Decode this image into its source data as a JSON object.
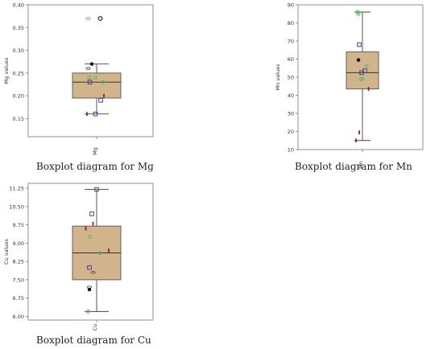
{
  "colors": {
    "frame": "#777777",
    "box_fill": "#d2b48c",
    "box_stroke": "#555555",
    "median": "#333333",
    "whisker": "#444444",
    "marker_black": "#000000",
    "marker_green": "#56c256",
    "marker_blue": "#4a3d9c",
    "marker_red": "#9c1f1f",
    "marker_gray": "#555555"
  },
  "chart_data": [
    {
      "type": "boxplot",
      "ylabel": "Mg values",
      "category": "Mg",
      "caption": "Boxplot diagram for Mg",
      "ylim": [
        0.11,
        0.4
      ],
      "ticks": [
        "0.40",
        "0.35",
        "0.30",
        "0.25",
        "0.20",
        "0.15"
      ],
      "tick_values": [
        0.4,
        0.35,
        0.3,
        0.25,
        0.2,
        0.15
      ],
      "box": {
        "min": 0.16,
        "q1": 0.195,
        "median": 0.23,
        "q3": 0.25,
        "max": 0.27
      },
      "points": [
        {
          "x": -0.35,
          "y": 0.37,
          "shape": "ellipse",
          "color": "marker_green"
        },
        {
          "x": 0.15,
          "y": 0.37,
          "shape": "circle-open",
          "color": "marker_black"
        },
        {
          "x": -0.2,
          "y": 0.27,
          "shape": "dot",
          "color": "marker_black"
        },
        {
          "x": -0.35,
          "y": 0.26,
          "shape": "ellipse",
          "color": "marker_gray"
        },
        {
          "x": -0.3,
          "y": 0.24,
          "shape": "ring",
          "color": "marker_green"
        },
        {
          "x": -0.05,
          "y": 0.24,
          "shape": "ring",
          "color": "marker_green"
        },
        {
          "x": -0.28,
          "y": 0.23,
          "shape": "square",
          "color": "marker_blue"
        },
        {
          "x": 0.25,
          "y": 0.23,
          "shape": "ring",
          "color": "marker_green"
        },
        {
          "x": 0.3,
          "y": 0.2,
          "shape": "bar",
          "color": "marker_red"
        },
        {
          "x": 0.17,
          "y": 0.19,
          "shape": "square",
          "color": "marker_blue"
        },
        {
          "x": -0.4,
          "y": 0.16,
          "shape": "bar",
          "color": "marker_red"
        },
        {
          "x": -0.05,
          "y": 0.16,
          "shape": "square",
          "color": "marker_blue"
        }
      ]
    },
    {
      "type": "boxplot",
      "ylabel": "Mn values",
      "category": "Mn",
      "caption": "Boxplot diagram for Mn",
      "ylim": [
        10,
        90
      ],
      "ticks": [
        "90",
        "80",
        "70",
        "60",
        "50",
        "40",
        "30",
        "20",
        "10"
      ],
      "tick_values": [
        90,
        80,
        70,
        60,
        50,
        40,
        30,
        20,
        10
      ],
      "box": {
        "min": 15,
        "q1": 43.5,
        "median": 52.5,
        "q3": 64,
        "max": 86
      },
      "points": [
        {
          "x": -0.3,
          "y": 86,
          "shape": "ring",
          "color": "marker_green"
        },
        {
          "x": -0.25,
          "y": 85,
          "shape": "ring",
          "color": "marker_green"
        },
        {
          "x": -0.2,
          "y": 68,
          "shape": "square",
          "color": "marker_blue"
        },
        {
          "x": -0.25,
          "y": 59.5,
          "shape": "dot",
          "color": "marker_black"
        },
        {
          "x": 0.25,
          "y": 56,
          "shape": "ring",
          "color": "marker_green"
        },
        {
          "x": 0.15,
          "y": 53.5,
          "shape": "square",
          "color": "marker_blue"
        },
        {
          "x": -0.05,
          "y": 52.5,
          "shape": "square",
          "color": "marker_blue"
        },
        {
          "x": -0.1,
          "y": 49,
          "shape": "ring",
          "color": "marker_green"
        },
        {
          "x": 0.0,
          "y": 49,
          "shape": "ring",
          "color": "marker_green"
        },
        {
          "x": 0.38,
          "y": 43.5,
          "shape": "bar",
          "color": "marker_red"
        },
        {
          "x": -0.2,
          "y": 19.5,
          "shape": "bar",
          "color": "marker_red"
        },
        {
          "x": -0.4,
          "y": 15,
          "shape": "bar",
          "color": "marker_red"
        }
      ]
    },
    {
      "type": "boxplot",
      "ylabel": "Cu values",
      "category": "Cu",
      "caption": "Boxplot diagram for Cu",
      "ylim": [
        5.85,
        11.45
      ],
      "ticks": [
        "11.25",
        "10.50",
        "9.75",
        "9.00",
        "8.25",
        "7.50",
        "6.75",
        "6.00"
      ],
      "tick_values": [
        11.25,
        10.5,
        9.75,
        9.0,
        8.25,
        7.5,
        6.75,
        6.0
      ],
      "box": {
        "min": 6.2,
        "q1": 7.5,
        "median": 8.6,
        "q3": 9.7,
        "max": 11.2
      },
      "points": [
        {
          "x": 0.0,
          "y": 11.2,
          "shape": "square",
          "color": "marker_blue"
        },
        {
          "x": -0.2,
          "y": 10.2,
          "shape": "square",
          "color": "marker_blue"
        },
        {
          "x": -0.15,
          "y": 9.8,
          "shape": "bar",
          "color": "marker_red"
        },
        {
          "x": -0.45,
          "y": 9.6,
          "shape": "bar",
          "color": "marker_red"
        },
        {
          "x": -0.28,
          "y": 9.25,
          "shape": "ring",
          "color": "marker_green"
        },
        {
          "x": 0.5,
          "y": 8.7,
          "shape": "bar",
          "color": "marker_red"
        },
        {
          "x": 0.15,
          "y": 8.6,
          "shape": "ring",
          "color": "marker_green"
        },
        {
          "x": -0.3,
          "y": 8.0,
          "shape": "square",
          "color": "marker_blue"
        },
        {
          "x": -0.15,
          "y": 7.8,
          "shape": "ellipse",
          "color": "marker_gray"
        },
        {
          "x": -0.3,
          "y": 7.2,
          "shape": "ellipse",
          "color": "marker_gray"
        },
        {
          "x": -0.3,
          "y": 7.1,
          "shape": "dot",
          "color": "marker_black"
        },
        {
          "x": -0.35,
          "y": 6.2,
          "shape": "ring",
          "color": "marker_green"
        }
      ]
    }
  ]
}
